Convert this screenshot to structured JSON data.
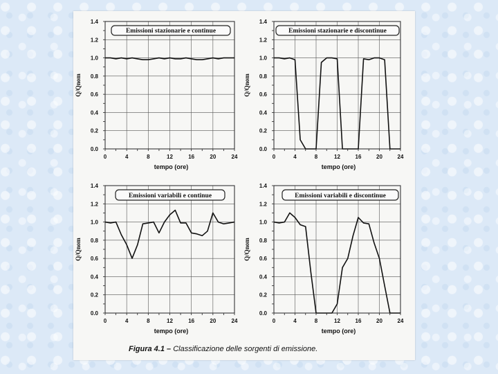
{
  "caption": {
    "label": "Figura 4.1 –",
    "text": "Classificazione delle sorgenti di emissione."
  },
  "chart_data": [
    {
      "type": "line",
      "title": "Emissioni stazionarie e continue",
      "xlabel": "tempo (ore)",
      "ylabel": "Q/Qnom",
      "xlim": [
        0,
        24
      ],
      "ylim": [
        0,
        1.4
      ],
      "xticks": [
        0,
        4,
        8,
        12,
        16,
        20,
        24
      ],
      "yticks": [
        "0.0",
        "0.2",
        "0.4",
        "0.6",
        "0.8",
        "1.0",
        "1.2",
        "1.4"
      ],
      "x": [
        0,
        1,
        2,
        3,
        4,
        5,
        6,
        7,
        8,
        9,
        10,
        11,
        12,
        13,
        14,
        15,
        16,
        17,
        18,
        19,
        20,
        21,
        22,
        23,
        24
      ],
      "y": [
        1.0,
        1.0,
        0.99,
        1.0,
        0.99,
        1.0,
        0.99,
        0.98,
        0.98,
        0.99,
        1.0,
        0.99,
        1.0,
        0.99,
        0.99,
        1.0,
        0.99,
        0.98,
        0.98,
        0.99,
        1.0,
        0.99,
        1.0,
        1.0,
        1.0
      ]
    },
    {
      "type": "line",
      "title": "Emissioni stazionarie e discontinue",
      "xlabel": "tempo (ore)",
      "ylabel": "Q/Qnom",
      "xlim": [
        0,
        24
      ],
      "ylim": [
        0,
        1.4
      ],
      "xticks": [
        0,
        4,
        8,
        12,
        16,
        20,
        24
      ],
      "yticks": [
        "0.0",
        "0.2",
        "0.4",
        "0.6",
        "0.8",
        "1.0",
        "1.2",
        "1.4"
      ],
      "x": [
        0,
        1,
        2,
        3,
        4,
        5,
        5.5,
        6,
        8,
        9,
        10,
        11,
        12,
        13,
        14,
        16,
        17,
        18,
        19,
        20,
        21,
        22,
        24
      ],
      "y": [
        1.0,
        1.0,
        0.99,
        1.0,
        0.98,
        0.1,
        0.05,
        0.0,
        0.0,
        0.95,
        1.0,
        1.0,
        0.99,
        0.0,
        0.0,
        0.0,
        0.99,
        0.98,
        1.0,
        1.0,
        0.98,
        0.0,
        0.0
      ]
    },
    {
      "type": "line",
      "title": "Emissioni variabili e continue",
      "xlabel": "tempo (ore)",
      "ylabel": "Q/Qnom",
      "xlim": [
        0,
        24
      ],
      "ylim": [
        0,
        1.4
      ],
      "xticks": [
        0,
        4,
        8,
        12,
        16,
        20,
        24
      ],
      "yticks": [
        "0.0",
        "0.2",
        "0.4",
        "0.6",
        "0.8",
        "1.0",
        "1.2",
        "1.4"
      ],
      "x": [
        0,
        1,
        2,
        3,
        4,
        5,
        6,
        7,
        8,
        9,
        10,
        11,
        12,
        13,
        14,
        15,
        16,
        17,
        18,
        19,
        20,
        21,
        22,
        23,
        24
      ],
      "y": [
        1.0,
        0.99,
        1.0,
        0.86,
        0.75,
        0.6,
        0.75,
        0.98,
        0.99,
        1.0,
        0.88,
        1.0,
        1.08,
        1.13,
        0.99,
        0.99,
        0.88,
        0.87,
        0.85,
        0.9,
        1.1,
        1.0,
        0.98,
        0.99,
        1.0
      ]
    },
    {
      "type": "line",
      "title": "Emissioni variabili e discontinue",
      "xlabel": "tempo (ore)",
      "ylabel": "Q/Qnom",
      "xlim": [
        0,
        24
      ],
      "ylim": [
        0,
        1.4
      ],
      "xticks": [
        0,
        4,
        8,
        12,
        16,
        20,
        24
      ],
      "yticks": [
        "0.0",
        "0.2",
        "0.4",
        "0.6",
        "0.8",
        "1.0",
        "1.2",
        "1.4"
      ],
      "x": [
        0,
        1,
        2,
        3,
        4,
        5,
        6,
        7,
        8,
        9,
        10,
        11,
        12,
        13,
        14,
        15,
        16,
        17,
        18,
        19,
        20,
        21,
        22,
        23,
        24
      ],
      "y": [
        1.0,
        0.99,
        1.0,
        1.1,
        1.05,
        0.97,
        0.95,
        0.45,
        0.0,
        0.0,
        0.0,
        0.0,
        0.1,
        0.5,
        0.6,
        0.85,
        1.05,
        0.99,
        0.98,
        0.77,
        0.6,
        0.3,
        0.0,
        0.0,
        0.0
      ]
    }
  ]
}
